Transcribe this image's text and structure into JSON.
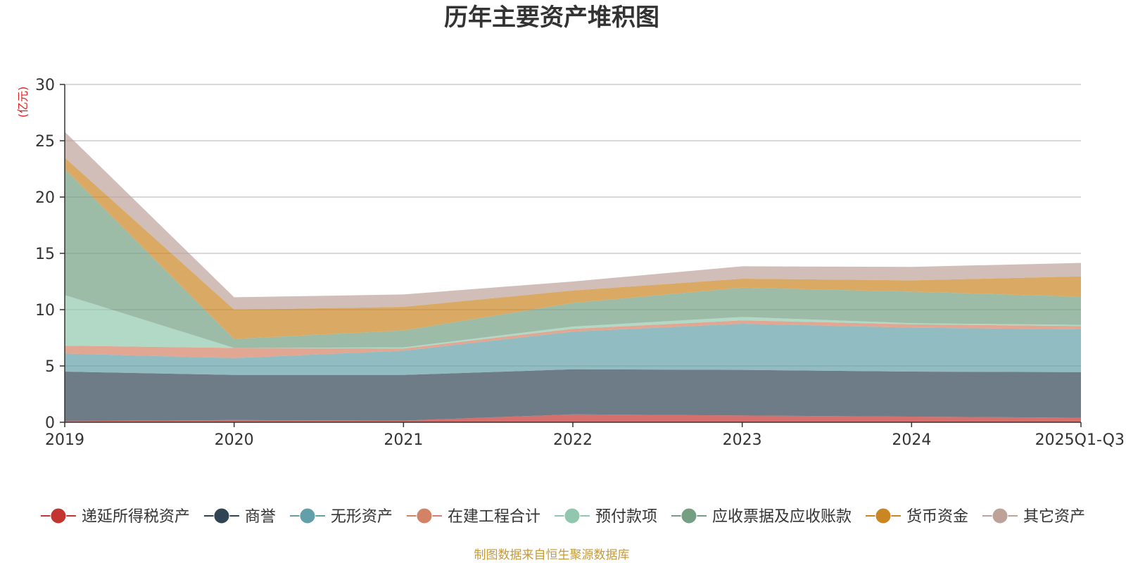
{
  "chart_data": {
    "type": "area",
    "stacked": true,
    "title": "历年主要资产堆积图",
    "ylabel": "(亿元)",
    "ylim": [
      0,
      30
    ],
    "yticks": [
      0,
      5,
      10,
      15,
      20,
      25,
      30
    ],
    "categories": [
      "2019",
      "2020",
      "2021",
      "2022",
      "2023",
      "2024",
      "2025Q1-Q3"
    ],
    "series": [
      {
        "name": "递延所得税资产",
        "color": "#c23531",
        "values": [
          0.1,
          0.2,
          0.15,
          0.7,
          0.6,
          0.5,
          0.4
        ]
      },
      {
        "name": "商誉",
        "color": "#2f4554",
        "values": [
          4.4,
          4.0,
          4.05,
          4.0,
          4.05,
          4.0,
          4.05
        ]
      },
      {
        "name": "无形资产",
        "color": "#61a0a8",
        "values": [
          1.6,
          1.5,
          2.15,
          3.35,
          4.1,
          3.9,
          3.8
        ]
      },
      {
        "name": "在建工程合计",
        "color": "#d48265",
        "values": [
          0.7,
          0.9,
          0.2,
          0.25,
          0.3,
          0.3,
          0.3
        ]
      },
      {
        "name": "预付款项",
        "color": "#91c7ae",
        "values": [
          4.5,
          0.0,
          0.1,
          0.2,
          0.3,
          0.1,
          0.1
        ]
      },
      {
        "name": "应收票据及应收账款",
        "color": "#749f83",
        "values": [
          11.2,
          0.8,
          1.5,
          2.1,
          2.6,
          2.8,
          2.5
        ]
      },
      {
        "name": "货币资金",
        "color": "#ca8622",
        "values": [
          1.0,
          2.6,
          2.1,
          1.1,
          0.8,
          1.0,
          1.8
        ]
      },
      {
        "name": "其它资产",
        "color": "#bda29a",
        "values": [
          2.3,
          1.1,
          1.1,
          0.8,
          1.1,
          1.2,
          1.2
        ]
      }
    ]
  },
  "footer": {
    "text": "制图数据来自恒生聚源数据库",
    "color": "#c49a3a"
  },
  "colors": {
    "grid": "#cccccc",
    "axis": "#333333",
    "unit": "#e02020"
  }
}
